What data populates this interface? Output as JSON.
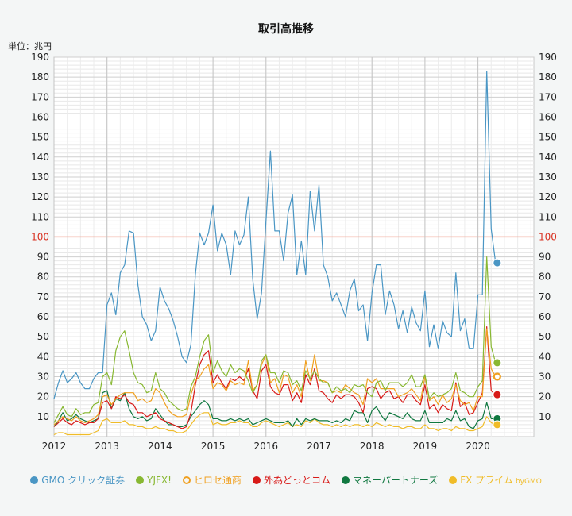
{
  "chart_data": {
    "type": "line",
    "title": "取引高推移",
    "unit_label": "単位：兆円",
    "ylim": [
      0,
      190
    ],
    "y_ticks": [
      10,
      20,
      30,
      40,
      50,
      60,
      70,
      80,
      90,
      100,
      110,
      120,
      130,
      140,
      150,
      160,
      170,
      180,
      190
    ],
    "x_ticks": [
      "2012",
      "2013",
      "2014",
      "2015",
      "2016",
      "2017",
      "2018",
      "2019",
      "2020"
    ],
    "x_start_year": 2012,
    "reference_line": {
      "value": 100,
      "color": "#f0a898"
    },
    "grid": true,
    "legend_position": "bottom",
    "series": [
      {
        "name": "GMO クリック証券",
        "color": "#4a96c4",
        "marker": "dot",
        "values": [
          19,
          27,
          33,
          27,
          29,
          32,
          27,
          24,
          24,
          29,
          32,
          32,
          66,
          72,
          61,
          82,
          86,
          103,
          102,
          76,
          60,
          56,
          48,
          53,
          75,
          68,
          64,
          58,
          50,
          40,
          37,
          46,
          81,
          102,
          96,
          102,
          116,
          93,
          102,
          96,
          81,
          103,
          96,
          101,
          120,
          79,
          59,
          72,
          108,
          143,
          103,
          103,
          88,
          112,
          121,
          81,
          98,
          81,
          123,
          103,
          126,
          86,
          80,
          68,
          72,
          66,
          60,
          73,
          79,
          63,
          66,
          48,
          72,
          86,
          86,
          61,
          73,
          66,
          54,
          63,
          52,
          65,
          57,
          53,
          73,
          45,
          56,
          44,
          58,
          52,
          50,
          82,
          53,
          59,
          44,
          44,
          71,
          71,
          183,
          104,
          87
        ]
      },
      {
        "name": "YJFX!",
        "color": "#88b832",
        "marker": "dot",
        "values": [
          7,
          11,
          15,
          11,
          10,
          14,
          11,
          12,
          12,
          16,
          17,
          30,
          32,
          26,
          43,
          50,
          53,
          43,
          32,
          27,
          26,
          22,
          23,
          32,
          24,
          22,
          18,
          16,
          14,
          13,
          14,
          25,
          30,
          40,
          48,
          51,
          32,
          38,
          33,
          30,
          36,
          32,
          34,
          33,
          28,
          22,
          26,
          38,
          41,
          32,
          32,
          27,
          33,
          32,
          26,
          28,
          23,
          33,
          29,
          33,
          29,
          27,
          27,
          22,
          25,
          23,
          24,
          22,
          26,
          25,
          26,
          22,
          20,
          27,
          28,
          23,
          27,
          27,
          27,
          25,
          27,
          31,
          25,
          25,
          31,
          19,
          22,
          20,
          21,
          22,
          24,
          32,
          23,
          22,
          20,
          20,
          25,
          28,
          90,
          45,
          37
        ]
      },
      {
        "name": "ヒロセ通商",
        "color": "#f0a020",
        "marker": "ring",
        "values": [
          6,
          8,
          10,
          9,
          8,
          10,
          8,
          7,
          8,
          9,
          11,
          20,
          21,
          16,
          19,
          21,
          22,
          22,
          22,
          18,
          19,
          17,
          18,
          24,
          22,
          17,
          13,
          11,
          10,
          10,
          11,
          21,
          28,
          30,
          34,
          36,
          24,
          27,
          26,
          23,
          28,
          26,
          27,
          26,
          38,
          23,
          26,
          36,
          41,
          27,
          29,
          22,
          31,
          30,
          22,
          26,
          20,
          38,
          28,
          41,
          28,
          28,
          27,
          22,
          23,
          22,
          26,
          24,
          22,
          21,
          16,
          29,
          27,
          29,
          24,
          24,
          24,
          24,
          20,
          21,
          22,
          24,
          21,
          18,
          30,
          18,
          20,
          16,
          21,
          17,
          19,
          26,
          18,
          16,
          17,
          13,
          20,
          20,
          54,
          34,
          30
        ]
      },
      {
        "name": "外為どっとコム",
        "color": "#d81a18",
        "marker": "dot",
        "values": [
          5,
          7,
          9,
          7,
          6,
          8,
          7,
          6,
          7,
          7,
          9,
          17,
          18,
          14,
          20,
          19,
          21,
          17,
          16,
          12,
          12,
          10,
          11,
          12,
          9,
          8,
          7,
          6,
          5,
          4,
          5,
          12,
          26,
          36,
          41,
          43,
          27,
          31,
          27,
          24,
          29,
          28,
          30,
          28,
          34,
          23,
          19,
          33,
          36,
          25,
          22,
          21,
          26,
          26,
          18,
          22,
          17,
          31,
          26,
          34,
          23,
          22,
          19,
          17,
          21,
          19,
          21,
          21,
          20,
          17,
          12,
          24,
          25,
          24,
          19,
          22,
          23,
          19,
          20,
          17,
          21,
          21,
          18,
          16,
          26,
          14,
          16,
          12,
          16,
          14,
          13,
          27,
          15,
          17,
          11,
          12,
          17,
          22,
          55,
          23,
          21
        ]
      },
      {
        "name": "マネーパートナーズ",
        "color": "#107840",
        "marker": "dot",
        "values": [
          5,
          8,
          12,
          8,
          9,
          11,
          9,
          8,
          7,
          8,
          9,
          22,
          23,
          14,
          19,
          18,
          22,
          14,
          10,
          9,
          10,
          8,
          9,
          14,
          11,
          8,
          6,
          6,
          5,
          5,
          6,
          10,
          13,
          16,
          18,
          16,
          9,
          9,
          8,
          8,
          9,
          8,
          9,
          8,
          9,
          6,
          7,
          8,
          9,
          8,
          7,
          7,
          7,
          8,
          5,
          9,
          6,
          9,
          8,
          9,
          8,
          8,
          8,
          7,
          8,
          7,
          9,
          8,
          13,
          12,
          12,
          7,
          13,
          15,
          11,
          8,
          12,
          11,
          10,
          9,
          12,
          9,
          8,
          8,
          13,
          7,
          7,
          7,
          7,
          9,
          8,
          13,
          8,
          9,
          5,
          4,
          8,
          9,
          17,
          9,
          9
        ]
      },
      {
        "name": "FX プライム byGMO",
        "color": "#f0bc28",
        "marker": "dot",
        "values": [
          1,
          2,
          2,
          1,
          1,
          1,
          1,
          1,
          1,
          2,
          3,
          8,
          9,
          7,
          7,
          7,
          8,
          6,
          6,
          5,
          5,
          4,
          4,
          5,
          4,
          4,
          3,
          3,
          2,
          2,
          3,
          6,
          9,
          11,
          12,
          12,
          6,
          7,
          6,
          6,
          7,
          7,
          8,
          7,
          7,
          5,
          5,
          7,
          8,
          7,
          6,
          5,
          6,
          7,
          5,
          6,
          5,
          8,
          7,
          9,
          7,
          6,
          6,
          5,
          6,
          5,
          6,
          5,
          6,
          6,
          5,
          6,
          5,
          7,
          6,
          5,
          6,
          5,
          5,
          4,
          5,
          5,
          4,
          4,
          6,
          4,
          4,
          3,
          4,
          4,
          3,
          5,
          4,
          4,
          3,
          3,
          4,
          5,
          10,
          7,
          6
        ]
      }
    ]
  }
}
